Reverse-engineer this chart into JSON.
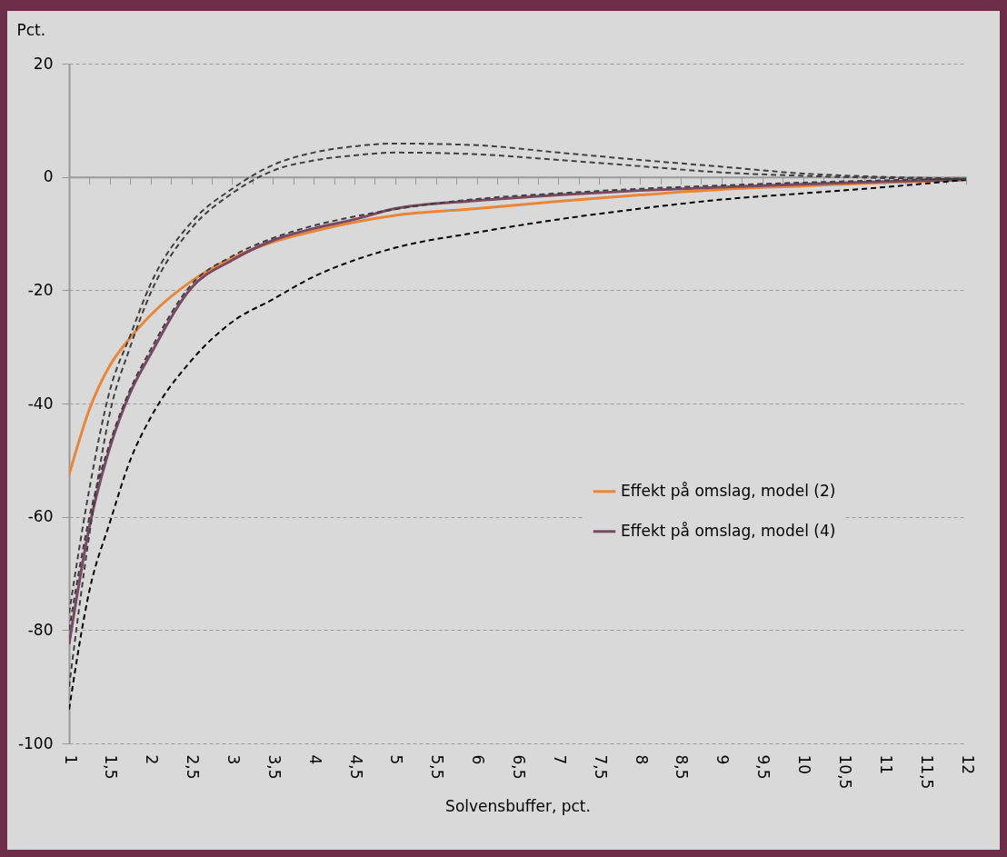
{
  "chart_data": {
    "type": "line",
    "xlabel": "Solvensbuffer, pct.",
    "ylabel": "Pct.",
    "x": [
      1,
      1.25,
      1.5,
      1.75,
      2,
      2.5,
      3,
      3.5,
      4,
      4.5,
      5,
      6,
      7,
      8,
      9,
      10,
      11,
      12
    ],
    "series": [
      {
        "name": "Effekt på omslag, model (2)",
        "color": "#e8873a",
        "line_style": "solid",
        "values": [
          -52.6,
          -41,
          -33.3,
          -28.4,
          -24.4,
          -18.4,
          -14.3,
          -11.5,
          -9.6,
          -8,
          -6.8,
          -5.6,
          -4.3,
          -3.2,
          -2.2,
          -1.6,
          -1,
          -0.5
        ]
      },
      {
        "name": "Effekt på omslag, model (4)",
        "color": "#7b4a62",
        "line_style": "solid",
        "values": [
          -82.5,
          -61.7,
          -47.8,
          -38.1,
          -31.3,
          -19.6,
          -14.7,
          -11.2,
          -9.1,
          -7.5,
          -5.6,
          -4.2,
          -3.2,
          -2.4,
          -1.8,
          -1.3,
          -0.8,
          -0.5
        ]
      },
      {
        "color": "#404040",
        "line_style": "dashed",
        "values": [
          -80,
          -60,
          -47,
          -37.5,
          -30.5,
          -19,
          -14,
          -10.8,
          -8.6,
          -7,
          -5.7,
          -3.9,
          -2.9,
          -2.1,
          -1.5,
          -1,
          -0.6,
          -0.3
        ]
      },
      {
        "color": "#000000",
        "line_style": "dashed",
        "values": [
          -94,
          -73,
          -61,
          -50,
          -42.5,
          -32.4,
          -25.6,
          -21.6,
          -17.6,
          -14.7,
          -12.5,
          -9.8,
          -7.5,
          -5.6,
          -4,
          -2.9,
          -1.8,
          -0.5
        ]
      },
      {
        "color": "#404040",
        "line_style": "dashed",
        "values": [
          -77,
          -55,
          -37.7,
          -28,
          -18.9,
          -8,
          -2.1,
          2.1,
          4.3,
          5.4,
          5.9,
          5.6,
          4.3,
          3,
          1.8,
          0.6,
          0,
          -0.3
        ]
      },
      {
        "color": "#404040",
        "line_style": "dashed",
        "values": [
          -90,
          -63,
          -41.7,
          -30,
          -20.5,
          -9.1,
          -2.9,
          1.1,
          2.9,
          3.8,
          4.3,
          4,
          3,
          1.9,
          0.8,
          0.2,
          -0.2,
          -0.4
        ]
      }
    ],
    "xlim": [
      1,
      12
    ],
    "xticks": [
      1,
      {
        "value": 1.25,
        "label": null
      },
      {
        "value": 1.5,
        "label": "1,5"
      },
      {
        "value": 1.75,
        "label": null
      },
      2,
      {
        "value": 2.25,
        "label": null
      },
      {
        "value": 2.5,
        "label": "2,5"
      },
      {
        "value": 2.75,
        "label": null
      },
      3,
      {
        "value": 3.25,
        "label": null
      },
      {
        "value": 3.5,
        "label": "3,5"
      },
      {
        "value": 3.75,
        "label": null
      },
      4,
      {
        "value": 4.25,
        "label": null
      },
      {
        "value": 4.5,
        "label": "4,5"
      },
      {
        "value": 4.75,
        "label": null
      },
      5,
      {
        "value": 5.25,
        "label": null
      },
      {
        "value": 5.5,
        "label": "5,5"
      },
      {
        "value": 5.75,
        "label": null
      },
      6,
      {
        "value": 6.25,
        "label": null
      },
      {
        "value": 6.5,
        "label": "6,5"
      },
      {
        "value": 6.75,
        "label": null
      },
      7,
      {
        "value": 7.25,
        "label": null
      },
      {
        "value": 7.5,
        "label": "7,5"
      },
      {
        "value": 7.75,
        "label": null
      },
      8,
      {
        "value": 8.25,
        "label": null
      },
      {
        "value": 8.5,
        "label": "8,5"
      },
      {
        "value": 8.75,
        "label": null
      },
      9,
      {
        "value": 9.25,
        "label": null
      },
      {
        "value": 9.5,
        "label": "9,5"
      },
      {
        "value": 9.75,
        "label": null
      },
      10,
      {
        "value": 10.25,
        "label": null
      },
      {
        "value": 10.5,
        "label": "10,5"
      },
      {
        "value": 10.75,
        "label": null
      },
      11,
      {
        "value": 11.25,
        "label": null
      },
      {
        "value": 11.5,
        "label": "11,5"
      },
      {
        "value": 11.75,
        "label": null
      },
      12
    ],
    "ylim": [
      -100,
      20
    ],
    "yticks": [
      -100,
      -80,
      -60,
      -40,
      -20,
      0,
      20
    ],
    "grid": "y",
    "legend": "right"
  }
}
